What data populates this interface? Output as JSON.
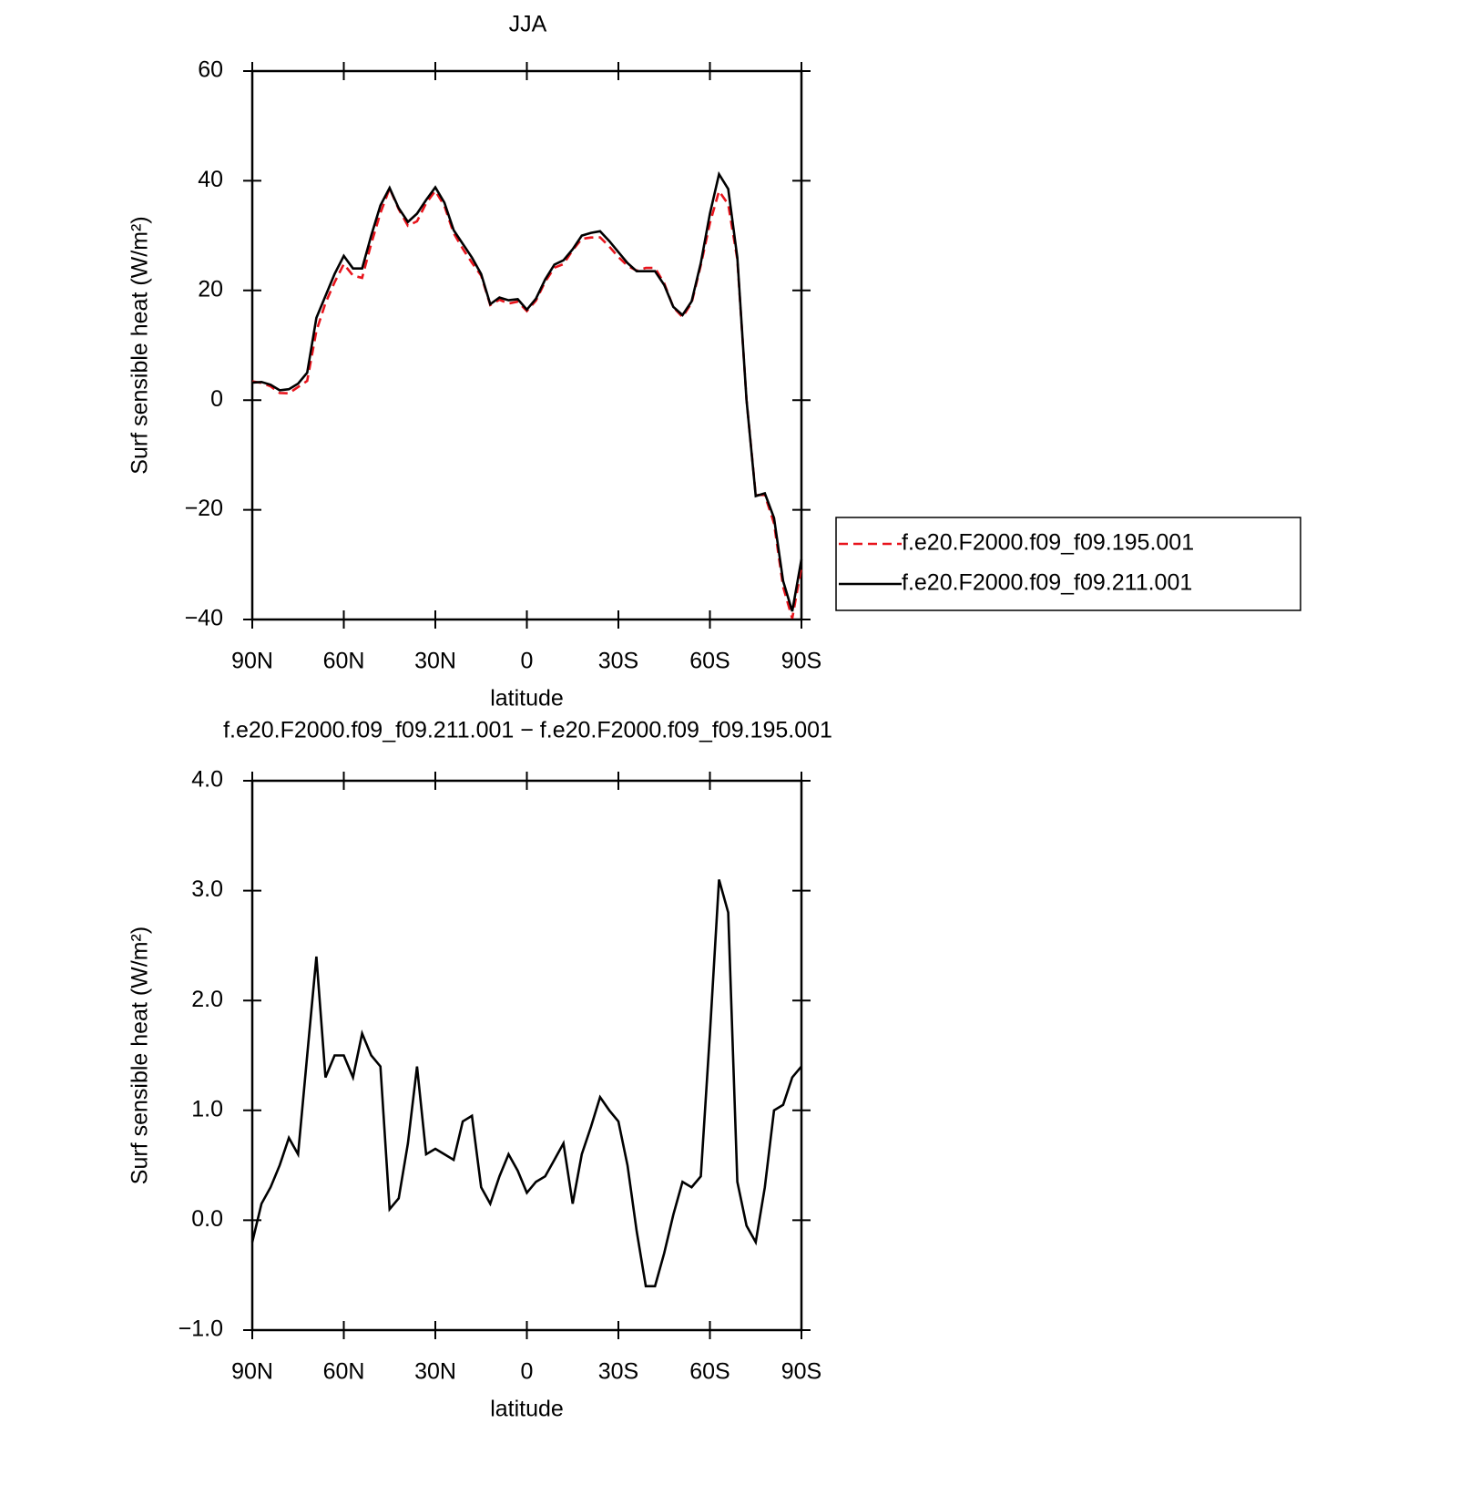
{
  "chart_data": [
    {
      "type": "line",
      "title": "JJA",
      "xlabel": "latitude",
      "ylabel": "Surf sensible heat (W/m²)",
      "x": [
        90,
        87,
        84,
        81,
        78,
        75,
        72,
        69,
        66,
        63,
        60,
        57,
        54,
        51,
        48,
        45,
        42,
        39,
        36,
        33,
        30,
        27,
        24,
        21,
        18,
        15,
        12,
        9,
        6,
        3,
        0,
        -3,
        -6,
        -9,
        -12,
        -15,
        -18,
        -21,
        -24,
        -27,
        -30,
        -33,
        -36,
        -39,
        -42,
        -45,
        -48,
        -51,
        -54,
        -57,
        -60,
        -63,
        -66,
        -69,
        -72,
        -75,
        -78,
        -81,
        -84,
        -87,
        -90
      ],
      "series": [
        {
          "name": "f.e20.F2000.f09_f09.195.001",
          "color": "#e8141c",
          "line_style": "dashed",
          "values": [
            3.4,
            3.15,
            2.5,
            1.3,
            1.25,
            2.4,
            3.5,
            12.6,
            17.7,
            21.5,
            24.8,
            22.7,
            22.3,
            28.5,
            34.1,
            38.6,
            34.8,
            31.8,
            32.6,
            35.9,
            38.15,
            35.4,
            30.45,
            27.6,
            25.05,
            22.7,
            17.35,
            18.3,
            17.6,
            17.95,
            16.25,
            18.15,
            21.6,
            24.15,
            24.8,
            27.35,
            29.4,
            29.65,
            29.68,
            28,
            26.1,
            24.5,
            23.6,
            24.1,
            24.1,
            21.3,
            16.95,
            15.15,
            17.7,
            24.6,
            32.3,
            38.1,
            35.7,
            25.65,
            0.05,
            -17.3,
            -17.3,
            -22.5,
            -34.05,
            -39.8,
            -30.4
          ]
        },
        {
          "name": "f.e20.F2000.f09_f09.211.001",
          "color": "#000000",
          "line_style": "solid",
          "values": [
            3.2,
            3.3,
            2.8,
            1.8,
            2.0,
            3.0,
            5,
            15,
            19,
            23,
            26.3,
            24,
            24,
            30,
            35.5,
            38.7,
            35,
            32.5,
            34,
            36.5,
            38.8,
            36,
            31,
            28.5,
            26,
            23,
            17.5,
            18.7,
            18.2,
            18.4,
            16.5,
            18.5,
            22,
            24.7,
            25.5,
            27.5,
            30,
            30.5,
            30.8,
            29,
            27,
            25,
            23.5,
            23.5,
            23.5,
            21,
            17,
            15.5,
            18,
            25,
            34,
            41.2,
            38.5,
            26,
            0,
            -17.5,
            -17,
            -21.5,
            -33,
            -38.5,
            -29
          ]
        }
      ],
      "xlim": [
        90,
        -90
      ],
      "xticks": [
        {
          "value": 90,
          "label": "90N"
        },
        {
          "value": 60,
          "label": "60N"
        },
        {
          "value": 30,
          "label": "30N"
        },
        0,
        {
          "value": -30,
          "label": "30S"
        },
        {
          "value": -60,
          "label": "60S"
        },
        {
          "value": -90,
          "label": "90S"
        }
      ],
      "ylim": [
        -40,
        60
      ],
      "yticks": [
        {
          "value": -40,
          "label": "−40"
        },
        {
          "value": -20,
          "label": "−20"
        },
        0,
        20,
        40,
        60
      ],
      "legend": "right"
    },
    {
      "type": "line",
      "title": "f.e20.F2000.f09_f09.211.001 − f.e20.F2000.f09_f09.195.001",
      "xlabel": "latitude",
      "ylabel": "Surf sensible heat (W/m²)",
      "x": [
        90,
        87,
        84,
        81,
        78,
        75,
        72,
        69,
        66,
        63,
        60,
        57,
        54,
        51,
        48,
        45,
        42,
        39,
        36,
        33,
        30,
        27,
        24,
        21,
        18,
        15,
        12,
        9,
        6,
        3,
        0,
        -3,
        -6,
        -9,
        -12,
        -15,
        -18,
        -21,
        -24,
        -27,
        -30,
        -33,
        -36,
        -39,
        -42,
        -45,
        -48,
        -51,
        -54,
        -57,
        -60,
        -63,
        -66,
        -69,
        -72,
        -75,
        -78,
        -81,
        -84,
        -87,
        -90
      ],
      "series": [
        {
          "color": "#000000",
          "line_style": "solid",
          "values": [
            -0.2,
            0.15,
            0.3,
            0.5,
            0.75,
            0.6,
            1.5,
            2.4,
            1.3,
            1.5,
            1.5,
            1.3,
            1.7,
            1.5,
            1.4,
            0.1,
            0.2,
            0.7,
            1.4,
            0.6,
            0.65,
            0.6,
            0.55,
            0.9,
            0.95,
            0.3,
            0.15,
            0.4,
            0.6,
            0.45,
            0.25,
            0.35,
            0.4,
            0.55,
            0.7,
            0.15,
            0.6,
            0.85,
            1.12,
            1.0,
            0.9,
            0.5,
            -0.1,
            -0.6,
            -0.6,
            -0.3,
            0.05,
            0.35,
            0.3,
            0.4,
            1.7,
            3.1,
            2.8,
            0.35,
            -0.05,
            -0.2,
            0.3,
            1.0,
            1.05,
            1.3,
            1.4
          ]
        }
      ],
      "xlim": [
        90,
        -90
      ],
      "xticks": [
        {
          "value": 90,
          "label": "90N"
        },
        {
          "value": 60,
          "label": "60N"
        },
        {
          "value": 30,
          "label": "30N"
        },
        0,
        {
          "value": -30,
          "label": "30S"
        },
        {
          "value": -60,
          "label": "60S"
        },
        {
          "value": -90,
          "label": "90S"
        }
      ],
      "ylim": [
        -1,
        4
      ],
      "yticks": [
        {
          "value": -1,
          "label": "−1.0"
        },
        {
          "value": 0,
          "label": "0.0"
        },
        {
          "value": 1,
          "label": "1.0"
        },
        {
          "value": 2,
          "label": "2.0"
        },
        {
          "value": 3,
          "label": "3.0"
        },
        {
          "value": 4,
          "label": "4.0"
        }
      ]
    }
  ]
}
